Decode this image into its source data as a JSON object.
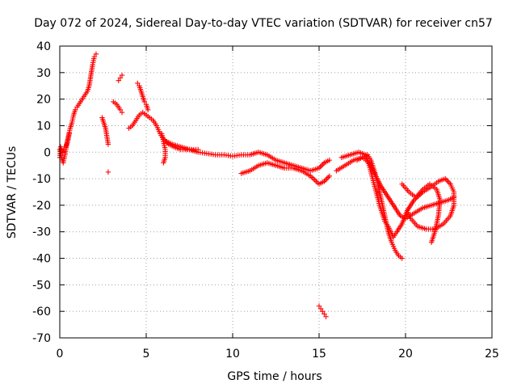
{
  "chart_data": {
    "type": "scatter",
    "title": "Day 072 of 2024, Sidereal Day-to-day VTEC variation (SDTVAR) for receiver cn57",
    "xlabel": "GPS time / hours",
    "ylabel": "SDTVAR / TECUs",
    "xlim": [
      0,
      25
    ],
    "ylim": [
      -70,
      40
    ],
    "x_ticks": [
      0,
      5,
      10,
      15,
      20,
      25
    ],
    "y_ticks": [
      -70,
      -60,
      -50,
      -40,
      -30,
      -20,
      -10,
      0,
      10,
      20,
      30,
      40
    ],
    "grid": true,
    "marker": "+",
    "color": "#ff0000",
    "segments": [
      {
        "name": "early-rise",
        "points": [
          [
            0.0,
            1
          ],
          [
            0.1,
            -2
          ],
          [
            0.2,
            -4
          ],
          [
            0.3,
            -1
          ],
          [
            0.4,
            3
          ],
          [
            0.5,
            6
          ],
          [
            0.6,
            9
          ],
          [
            0.7,
            11
          ],
          [
            0.8,
            14
          ],
          [
            0.9,
            16
          ],
          [
            1.0,
            17
          ],
          [
            1.2,
            19
          ],
          [
            1.4,
            21
          ],
          [
            1.6,
            23
          ],
          [
            1.7,
            25
          ],
          [
            1.8,
            29
          ],
          [
            1.9,
            33
          ],
          [
            2.0,
            36
          ],
          [
            2.1,
            37
          ]
        ]
      },
      {
        "name": "early-scatter",
        "points": [
          [
            0.0,
            -2
          ],
          [
            0.05,
            2
          ],
          [
            0.15,
            0
          ],
          [
            0.25,
            1
          ],
          [
            0.35,
            2
          ],
          [
            0.45,
            4
          ],
          [
            0.55,
            7
          ]
        ]
      },
      {
        "name": "dip-2-5h",
        "points": [
          [
            2.45,
            13
          ],
          [
            2.55,
            11
          ],
          [
            2.65,
            9
          ],
          [
            2.75,
            5
          ],
          [
            2.8,
            3
          ]
        ]
      },
      {
        "name": "outlier",
        "points": [
          [
            2.8,
            -7.5
          ]
        ]
      },
      {
        "name": "short-3-3h",
        "points": [
          [
            3.1,
            19
          ],
          [
            3.3,
            18
          ],
          [
            3.5,
            16
          ],
          [
            3.6,
            15
          ]
        ]
      },
      {
        "name": "short-3-5h",
        "points": [
          [
            3.4,
            27
          ],
          [
            3.5,
            28
          ],
          [
            3.6,
            29
          ]
        ]
      },
      {
        "name": "peak-4-5h",
        "points": [
          [
            4.5,
            26
          ],
          [
            4.6,
            25
          ],
          [
            4.7,
            23
          ],
          [
            4.8,
            21
          ],
          [
            4.9,
            19
          ],
          [
            5.0,
            18
          ],
          [
            5.1,
            16
          ]
        ]
      },
      {
        "name": "main-track",
        "points": [
          [
            4.0,
            9
          ],
          [
            4.2,
            10
          ],
          [
            4.4,
            12
          ],
          [
            4.6,
            14
          ],
          [
            4.8,
            15
          ],
          [
            5.0,
            14
          ],
          [
            5.2,
            13
          ],
          [
            5.4,
            12
          ],
          [
            5.6,
            10
          ],
          [
            5.8,
            7
          ],
          [
            6.0,
            5
          ],
          [
            6.3,
            3
          ],
          [
            6.6,
            2
          ],
          [
            7.0,
            1
          ],
          [
            7.5,
            1
          ],
          [
            8.0,
            0
          ],
          [
            8.5,
            -0.5
          ],
          [
            9.0,
            -1
          ],
          [
            9.5,
            -1
          ],
          [
            10.0,
            -1.5
          ],
          [
            10.5,
            -1
          ],
          [
            11.0,
            -1
          ],
          [
            11.5,
            0
          ],
          [
            12.0,
            -1
          ],
          [
            12.5,
            -3
          ],
          [
            13.0,
            -4
          ],
          [
            13.5,
            -5
          ],
          [
            14.0,
            -6
          ],
          [
            14.5,
            -7
          ],
          [
            15.0,
            -6
          ],
          [
            15.3,
            -4
          ],
          [
            15.6,
            -3
          ]
        ]
      },
      {
        "name": "track-6h",
        "points": [
          [
            5.9,
            7
          ],
          [
            6.0,
            4
          ],
          [
            6.1,
            1
          ],
          [
            6.1,
            -2
          ],
          [
            6.0,
            -4
          ]
        ]
      },
      {
        "name": "track-6-5h",
        "points": [
          [
            6.2,
            4
          ],
          [
            6.5,
            3
          ],
          [
            7.0,
            2
          ],
          [
            7.5,
            1
          ],
          [
            8.0,
            1
          ]
        ]
      },
      {
        "name": "lower-track",
        "points": [
          [
            10.5,
            -8
          ],
          [
            11.0,
            -7
          ],
          [
            11.5,
            -5
          ],
          [
            12.0,
            -4
          ],
          [
            12.5,
            -5
          ],
          [
            13.0,
            -6
          ],
          [
            13.5,
            -6
          ],
          [
            14.0,
            -7
          ],
          [
            14.5,
            -9
          ],
          [
            15.0,
            -12
          ],
          [
            15.3,
            -11
          ],
          [
            15.6,
            -9
          ]
        ]
      },
      {
        "name": "late-track-a",
        "points": [
          [
            16.0,
            -7
          ],
          [
            16.5,
            -5
          ],
          [
            17.0,
            -3
          ],
          [
            17.5,
            -2
          ],
          [
            17.8,
            -1
          ],
          [
            18.0,
            -3
          ],
          [
            18.2,
            -7
          ],
          [
            18.4,
            -12
          ],
          [
            18.6,
            -18
          ],
          [
            18.8,
            -24
          ],
          [
            19.0,
            -30
          ],
          [
            19.2,
            -34
          ],
          [
            19.4,
            -37
          ],
          [
            19.6,
            -39
          ],
          [
            19.8,
            -40
          ]
        ]
      },
      {
        "name": "late-track-b",
        "points": [
          [
            16.3,
            -2
          ],
          [
            16.8,
            -1
          ],
          [
            17.3,
            0
          ],
          [
            17.7,
            -1
          ],
          [
            17.9,
            -5
          ],
          [
            18.1,
            -10
          ],
          [
            18.3,
            -15
          ],
          [
            18.5,
            -20
          ],
          [
            18.8,
            -26
          ],
          [
            19.0,
            -28
          ],
          [
            19.3,
            -32
          ],
          [
            19.5,
            -30
          ],
          [
            19.8,
            -27
          ],
          [
            20.1,
            -22
          ],
          [
            20.5,
            -18
          ],
          [
            21.0,
            -15
          ],
          [
            21.5,
            -13
          ],
          [
            21.9,
            -11
          ],
          [
            22.3,
            -10
          ],
          [
            22.6,
            -12
          ],
          [
            22.8,
            -15
          ],
          [
            22.8,
            -20
          ],
          [
            22.6,
            -24
          ],
          [
            22.2,
            -27
          ],
          [
            21.7,
            -29
          ],
          [
            21.2,
            -29
          ],
          [
            20.7,
            -28
          ],
          [
            20.3,
            -25
          ],
          [
            20.1,
            -22
          ]
        ]
      },
      {
        "name": "late-track-c",
        "points": [
          [
            17.2,
            -3
          ],
          [
            17.5,
            -2
          ],
          [
            17.9,
            -4
          ],
          [
            18.2,
            -8
          ],
          [
            18.6,
            -13
          ],
          [
            19.0,
            -17
          ],
          [
            19.4,
            -21
          ],
          [
            19.7,
            -24
          ],
          [
            20.0,
            -25
          ],
          [
            20.5,
            -23
          ],
          [
            21.0,
            -21
          ],
          [
            21.5,
            -20
          ],
          [
            22.0,
            -19
          ],
          [
            22.5,
            -18
          ],
          [
            22.8,
            -17
          ]
        ]
      },
      {
        "name": "late-track-d",
        "points": [
          [
            19.8,
            -12
          ],
          [
            20.2,
            -15
          ],
          [
            20.6,
            -17
          ],
          [
            21.0,
            -14
          ],
          [
            21.4,
            -12
          ],
          [
            21.8,
            -14
          ],
          [
            22.0,
            -18
          ],
          [
            21.9,
            -24
          ],
          [
            21.7,
            -30
          ],
          [
            21.5,
            -34
          ]
        ]
      },
      {
        "name": "low-cluster",
        "points": [
          [
            15.0,
            -58
          ],
          [
            15.1,
            -59
          ],
          [
            15.2,
            -60
          ],
          [
            15.3,
            -61
          ],
          [
            15.4,
            -62
          ]
        ]
      }
    ]
  }
}
